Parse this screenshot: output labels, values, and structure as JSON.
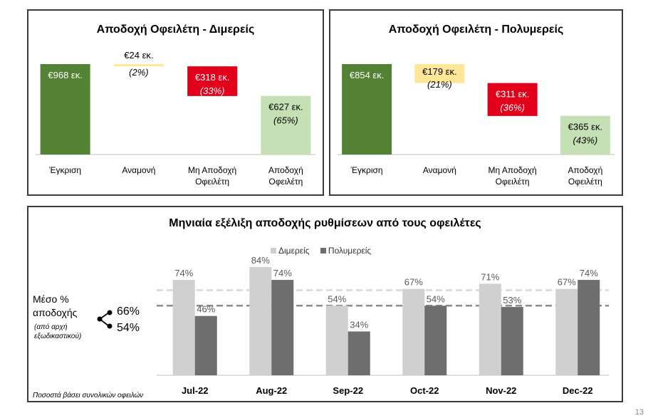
{
  "page_number": "13",
  "chart_data": [
    {
      "type": "waterfall",
      "title": "Αποδοχή Οφειλέτη - Διμερείς",
      "categories": [
        "Έγκριση",
        "Αναμονή",
        "Μη Αποδοχή Οφειλέτη",
        "Αποδοχή Οφειλέτη"
      ],
      "values": [
        968,
        24,
        318,
        627
      ],
      "value_labels": [
        "€968 εκ.",
        "€24 εκ.",
        "€318 εκ.",
        "€627 εκ."
      ],
      "pct_labels": [
        "",
        "(2%)",
        "(33%)",
        "(65%)"
      ],
      "colors": [
        "#548235",
        "#FFE699",
        "#E2001A",
        "#C5E0B4"
      ],
      "value_text_colors": [
        "#ffffff",
        "#000000",
        "#ffffff",
        "#000000"
      ]
    },
    {
      "type": "waterfall",
      "title": "Αποδοχή Οφειλέτη - Πολυμερείς",
      "categories": [
        "Έγκριση",
        "Αναμονή",
        "Μη Αποδοχή Οφειλέτη",
        "Αποδοχή Οφειλέτη"
      ],
      "values": [
        854,
        179,
        311,
        365
      ],
      "value_labels": [
        "€854 εκ.",
        "€179 εκ.",
        "€311 εκ.",
        "€365 εκ."
      ],
      "pct_labels": [
        "",
        "(21%)",
        "(36%)",
        "(43%)"
      ],
      "colors": [
        "#548235",
        "#FFE699",
        "#E2001A",
        "#C5E0B4"
      ],
      "value_text_colors": [
        "#ffffff",
        "#000000",
        "#ffffff",
        "#000000"
      ]
    },
    {
      "type": "bar",
      "title": "Μηνιαία εξέλιξη αποδοχής ρυθμίσεων από τους οφειλέτες",
      "categories": [
        "Jul-22",
        "Aug-22",
        "Sep-22",
        "Oct-22",
        "Nov-22",
        "Dec-22"
      ],
      "series": [
        {
          "name": "Διμερείς",
          "values": [
            74,
            84,
            54,
            67,
            71,
            67
          ],
          "labels": [
            "74%",
            "84%",
            "54%",
            "67%",
            "71%",
            "67%"
          ],
          "color": "#D0D0D0"
        },
        {
          "name": "Πολυμερείς",
          "values": [
            46,
            74,
            34,
            54,
            53,
            74
          ],
          "labels": [
            "46%",
            "74%",
            "34%",
            "54%",
            "53%",
            "74%"
          ],
          "color": "#6E6E6E"
        }
      ],
      "ylim": [
        0,
        100
      ],
      "reference_lines": [
        {
          "value": 66,
          "label": "66%",
          "color": "#D0D0D0"
        },
        {
          "value": 54,
          "label": "54%",
          "color": "#808080"
        }
      ],
      "legend_position": "top",
      "avg_label_line1": "Μέσο %",
      "avg_label_line2": "αποδοχής",
      "avg_sublabel_line1": "(από αρχή",
      "avg_sublabel_line2": "εξωδικαστικού)",
      "footnote": "Ποσοστά βάσει συνολικών οφειλών"
    }
  ]
}
